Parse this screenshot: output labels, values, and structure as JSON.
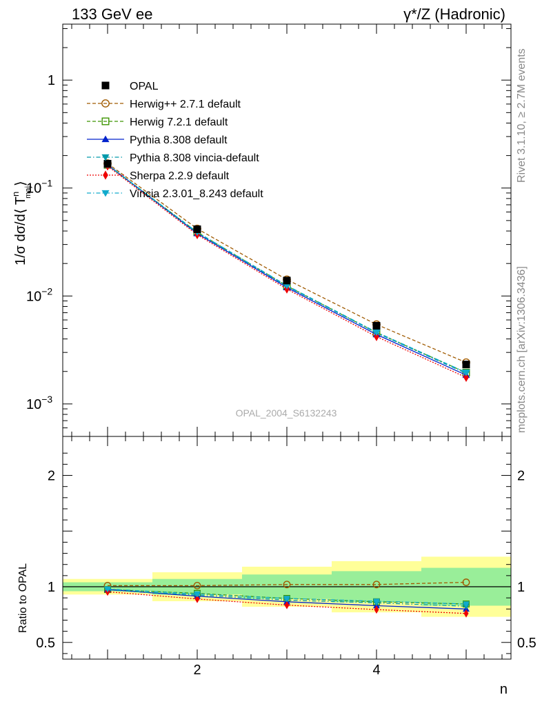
{
  "header": {
    "left": "133 GeV ee",
    "right": "γ*/Z (Hadronic)"
  },
  "side_text": {
    "rivet": "Rivet 3.1.10, ≥ 2.7M events",
    "mcplots": "mcplots.cern.ch [arXiv:1306.3436]"
  },
  "watermark": "OPAL_2004_S6132243",
  "colors": {
    "band_inner": "#99ee99",
    "band_outer": "#ffff99",
    "OPAL": "#000000",
    "Herwig++ 2.7.1 default": "#a05a00",
    "Herwig 7.2.1 default": "#3c9400",
    "Pythia 8.308 default": "#0022cc",
    "Pythia 8.308 vincia-default": "#0099aa",
    "Sherpa 2.2.9 default": "#ee0000",
    "Vincia 2.3.01_8.243 default": "#11aacc"
  },
  "chart_data": [
    {
      "type": "scatter",
      "panel": "main",
      "ylabel": "1/σ dσ/d⟨ T",
      "ylabel_sup": "n",
      "ylabel_sub": "maj",
      "ylabel_close": "⟩",
      "yscale": "log",
      "xlim": [
        0.5,
        5.5
      ],
      "ylim": [
        0.0005,
        3.3
      ],
      "yticks": [
        {
          "value": 1,
          "label": "1"
        },
        {
          "value": 0.1,
          "label": "10",
          "exp": "−1"
        },
        {
          "value": 0.01,
          "label": "10",
          "exp": "−2"
        },
        {
          "value": 0.001,
          "label": "10",
          "exp": "−3"
        }
      ],
      "x": [
        1,
        2,
        3,
        4,
        5
      ],
      "series": [
        {
          "name": "OPAL",
          "marker": "square-filled",
          "line": "none",
          "values": [
            0.168,
            0.0415,
            0.0139,
            0.0053,
            0.00232
          ]
        },
        {
          "name": "Herwig++ 2.7.1 default",
          "marker": "circle-open",
          "line": "dashed",
          "values": [
            0.169,
            0.042,
            0.0142,
            0.00545,
            0.00242
          ]
        },
        {
          "name": "Herwig 7.2.1 default",
          "marker": "square-open",
          "line": "dashed",
          "values": [
            0.164,
            0.039,
            0.0124,
            0.00458,
            0.00195
          ]
        },
        {
          "name": "Pythia 8.308 default",
          "marker": "triangle-up",
          "line": "solid",
          "values": [
            0.164,
            0.038,
            0.012,
            0.0044,
            0.00185
          ]
        },
        {
          "name": "Pythia 8.308 vincia-default",
          "marker": "triangle-down",
          "line": "dashdot",
          "values": [
            0.163,
            0.0385,
            0.0123,
            0.00455,
            0.00192
          ]
        },
        {
          "name": "Sherpa 2.2.9 default",
          "marker": "diamond",
          "line": "dotted",
          "values": [
            0.16,
            0.037,
            0.0116,
            0.0042,
            0.00176
          ]
        },
        {
          "name": "Vincia 2.3.01_8.243 default",
          "marker": "triangle-down",
          "line": "dashdot",
          "values": [
            0.165,
            0.039,
            0.0125,
            0.00462,
            0.00196
          ]
        }
      ]
    },
    {
      "type": "scatter",
      "panel": "ratio",
      "ylabel": "Ratio to OPAL",
      "xlabel": "n",
      "xlim": [
        0.5,
        5.5
      ],
      "ylim": [
        0.35,
        2.35
      ],
      "yticks": [
        {
          "value": 2,
          "label": "2"
        },
        {
          "value": 1,
          "label": "1"
        },
        {
          "value": 0.5,
          "label": "0.5"
        }
      ],
      "xticks": [
        {
          "value": 2,
          "label": "2"
        },
        {
          "value": 4,
          "label": "4"
        }
      ],
      "x": [
        1,
        2,
        3,
        4,
        5
      ],
      "bands": {
        "outer": [
          [
            0.93,
            1.07
          ],
          [
            0.87,
            1.13
          ],
          [
            0.82,
            1.18
          ],
          [
            0.77,
            1.23
          ],
          [
            0.73,
            1.27
          ]
        ],
        "inner": [
          [
            0.96,
            1.04
          ],
          [
            0.93,
            1.07
          ],
          [
            0.89,
            1.11
          ],
          [
            0.86,
            1.14
          ],
          [
            0.83,
            1.17
          ]
        ]
      },
      "series": [
        {
          "name": "Herwig++ 2.7.1 default",
          "values": [
            1.01,
            1.01,
            1.02,
            1.02,
            1.04
          ]
        },
        {
          "name": "Herwig 7.2.1 default",
          "values": [
            0.975,
            0.94,
            0.895,
            0.865,
            0.845
          ]
        },
        {
          "name": "Pythia 8.308 default",
          "values": [
            0.975,
            0.915,
            0.865,
            0.83,
            0.8
          ]
        },
        {
          "name": "Pythia 8.308 vincia-default",
          "values": [
            0.97,
            0.925,
            0.88,
            0.855,
            0.825
          ]
        },
        {
          "name": "Sherpa 2.2.9 default",
          "values": [
            0.955,
            0.89,
            0.835,
            0.795,
            0.76
          ]
        },
        {
          "name": "Vincia 2.3.01_8.243 default",
          "values": [
            0.98,
            0.935,
            0.895,
            0.87,
            0.845
          ]
        }
      ]
    }
  ]
}
